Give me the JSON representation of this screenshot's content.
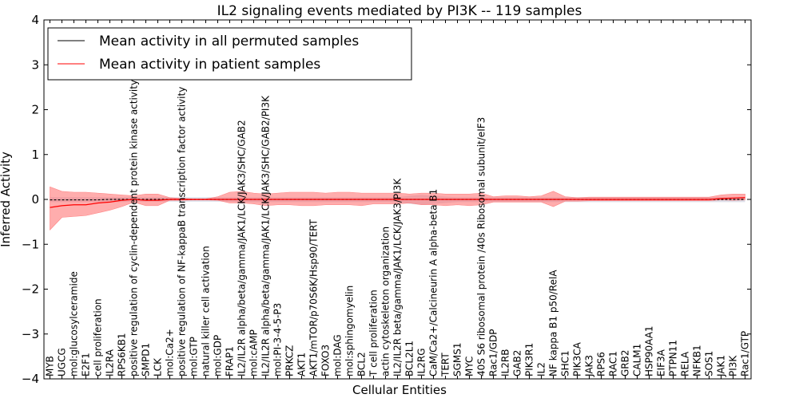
{
  "chart_data": {
    "type": "line",
    "title": "IL2 signaling events mediated by PI3K -- 119 samples",
    "xlabel": "Cellular Entities",
    "ylabel": "Inferred Activity",
    "ylim": [
      -4,
      4
    ],
    "yticks": [
      -4,
      -3,
      -2,
      -1,
      0,
      1,
      2,
      3,
      4
    ],
    "ytick_labels": [
      "−4",
      "−3",
      "−2",
      "−1",
      "0",
      "1",
      "2",
      "3",
      "4"
    ],
    "legend_position": "top-left",
    "categories": [
      "MYB",
      "UGCG",
      "mol:glucosylceramide",
      "E2F1",
      "cell proliferation",
      "IL2RA",
      "RPS6KB1",
      "positive regulation of cyclin-dependent protein kinase activity",
      "SMPD1",
      "LCK",
      "mol:Ca2+",
      "positive regulation of NF-kappaB transcription factor activity",
      "mol:GTP",
      "natural killer cell activation",
      "mol:GDP",
      "FRAP1",
      "IL2/IL2R alpha/beta/gamma/JAK1/LCK/JAK3/SHC/GAB2",
      "mol:cAMP",
      "IL2/IL2R alpha/beta/gamma/JAK1/LCK/JAK3/SHC/GAB2/PI3K",
      "mol:PI-3-4-5-P3",
      "PRKCZ",
      "AKT1",
      "AKT1/mTOR/p70S6K/Hsp90/TERT",
      "FOXO3",
      "mol:DAG",
      "mol:sphingomyelin",
      "BCL2",
      "T cell proliferation",
      "actin cytoskeleton organization",
      "IL2/IL2R beta/gamma/JAK1/LCK/JAK3/PI3K",
      "BCL2L1",
      "IL2RG",
      "CaM/Ca2+/Calcineurin A alpha-beta B1",
      "TERT",
      "SGMS1",
      "MYC",
      "40S S6 ribosomal protein /40s Ribosomal subunit/eIF3",
      "Rac1/GDP",
      "IL2RB",
      "GAB2",
      "PIK3R1",
      "IL2",
      "NF kappa B1 p50/RelA",
      "SHC1",
      "PIK3CA",
      "JAK3",
      "RPS6",
      "RAC1",
      "GRB2",
      "CALM1",
      "HSP90AA1",
      "EIF3A",
      "PTPN11",
      "RELA",
      "NFKB1",
      "SOS1",
      "JAK1",
      "PI3K",
      "Rac1/GTP"
    ],
    "series": [
      {
        "name": "Mean activity in all permuted samples",
        "color": "#000000",
        "values": [
          -0.01,
          -0.01,
          -0.01,
          -0.01,
          -0.01,
          0.0,
          0.0,
          0.0,
          0.0,
          0.0,
          0.0,
          0.0,
          0.0,
          0.0,
          0.0,
          0.0,
          0.0,
          0.0,
          0.0,
          0.0,
          0.0,
          0.0,
          0.0,
          0.0,
          0.0,
          0.0,
          0.0,
          0.0,
          0.0,
          0.0,
          0.0,
          0.0,
          0.0,
          0.0,
          0.0,
          0.0,
          0.0,
          0.0,
          0.0,
          0.0,
          0.0,
          0.0,
          0.0,
          0.0,
          0.0,
          0.0,
          0.0,
          0.0,
          0.0,
          0.0,
          0.0,
          0.0,
          0.0,
          0.0,
          0.0,
          0.0,
          0.0,
          0.0,
          0.0
        ],
        "band_low": [
          -0.06,
          -0.06,
          -0.06,
          -0.06,
          -0.06,
          -0.06,
          -0.06,
          -0.05,
          -0.05,
          -0.05,
          -0.05,
          -0.05,
          -0.05,
          -0.05,
          -0.05,
          -0.05,
          -0.06,
          -0.06,
          -0.06,
          -0.06,
          -0.06,
          -0.06,
          -0.06,
          -0.06,
          -0.06,
          -0.06,
          -0.06,
          -0.06,
          -0.06,
          -0.06,
          -0.1,
          -0.12,
          -0.1,
          -0.08,
          -0.06,
          -0.06,
          -0.06,
          -0.06,
          -0.06,
          -0.06,
          -0.06,
          -0.06,
          -0.06,
          -0.06,
          -0.06,
          -0.06,
          -0.06,
          -0.06,
          -0.06,
          -0.06,
          -0.06,
          -0.06,
          -0.06,
          -0.06,
          -0.06,
          -0.06,
          -0.06,
          -0.06,
          -0.06
        ],
        "band_high": [
          0.05,
          0.05,
          0.05,
          0.05,
          0.05,
          0.05,
          0.05,
          0.05,
          0.05,
          0.05,
          0.05,
          0.05,
          0.05,
          0.05,
          0.05,
          0.05,
          0.05,
          0.05,
          0.05,
          0.05,
          0.05,
          0.05,
          0.05,
          0.05,
          0.05,
          0.05,
          0.05,
          0.05,
          0.05,
          0.05,
          0.08,
          0.1,
          0.08,
          0.06,
          0.05,
          0.05,
          0.05,
          0.05,
          0.05,
          0.05,
          0.05,
          0.05,
          0.05,
          0.05,
          0.05,
          0.05,
          0.05,
          0.05,
          0.05,
          0.05,
          0.05,
          0.05,
          0.05,
          0.05,
          0.05,
          0.05,
          0.05,
          0.05,
          0.05
        ]
      },
      {
        "name": "Mean activity in patient samples",
        "color": "#ff0000",
        "values": [
          -0.18,
          -0.14,
          -0.12,
          -0.12,
          -0.08,
          -0.06,
          -0.02,
          0.0,
          -0.02,
          -0.02,
          0.0,
          0.0,
          0.0,
          0.0,
          0.0,
          0.0,
          0.0,
          0.0,
          0.0,
          0.0,
          0.0,
          0.0,
          0.0,
          0.0,
          0.0,
          0.0,
          0.0,
          0.0,
          0.0,
          0.0,
          0.0,
          0.0,
          0.0,
          0.0,
          0.0,
          0.0,
          0.0,
          0.0,
          0.0,
          0.0,
          0.0,
          0.0,
          0.0,
          0.0,
          0.0,
          0.0,
          0.0,
          0.0,
          0.0,
          0.0,
          0.0,
          0.0,
          0.0,
          0.0,
          0.0,
          0.0,
          0.02,
          0.03,
          0.04
        ],
        "band_low": [
          -0.68,
          -0.4,
          -0.38,
          -0.36,
          -0.3,
          -0.24,
          -0.16,
          -0.06,
          -0.14,
          -0.14,
          -0.02,
          -0.02,
          -0.01,
          -0.01,
          -0.02,
          -0.08,
          -0.08,
          -0.1,
          -0.14,
          -0.12,
          -0.12,
          -0.14,
          -0.14,
          -0.12,
          -0.12,
          -0.12,
          -0.14,
          -0.1,
          -0.1,
          -0.1,
          -0.08,
          -0.12,
          -0.12,
          -0.14,
          -0.12,
          -0.14,
          -0.12,
          -0.06,
          -0.06,
          -0.06,
          -0.06,
          -0.06,
          -0.16,
          -0.04,
          -0.04,
          -0.03,
          -0.03,
          -0.03,
          -0.03,
          -0.03,
          -0.03,
          -0.03,
          -0.03,
          -0.03,
          -0.03,
          -0.03,
          -0.01,
          -0.02,
          -0.01
        ],
        "band_high": [
          0.28,
          0.18,
          0.16,
          0.16,
          0.14,
          0.12,
          0.1,
          0.08,
          0.12,
          0.12,
          0.04,
          0.02,
          0.01,
          0.01,
          0.06,
          0.16,
          0.18,
          0.14,
          0.12,
          0.14,
          0.16,
          0.16,
          0.16,
          0.14,
          0.16,
          0.16,
          0.14,
          0.14,
          0.14,
          0.14,
          0.12,
          0.14,
          0.14,
          0.12,
          0.12,
          0.12,
          0.14,
          0.06,
          0.08,
          0.08,
          0.06,
          0.08,
          0.18,
          0.06,
          0.04,
          0.05,
          0.05,
          0.05,
          0.05,
          0.05,
          0.05,
          0.05,
          0.05,
          0.05,
          0.05,
          0.05,
          0.1,
          0.12,
          0.12
        ]
      }
    ]
  }
}
